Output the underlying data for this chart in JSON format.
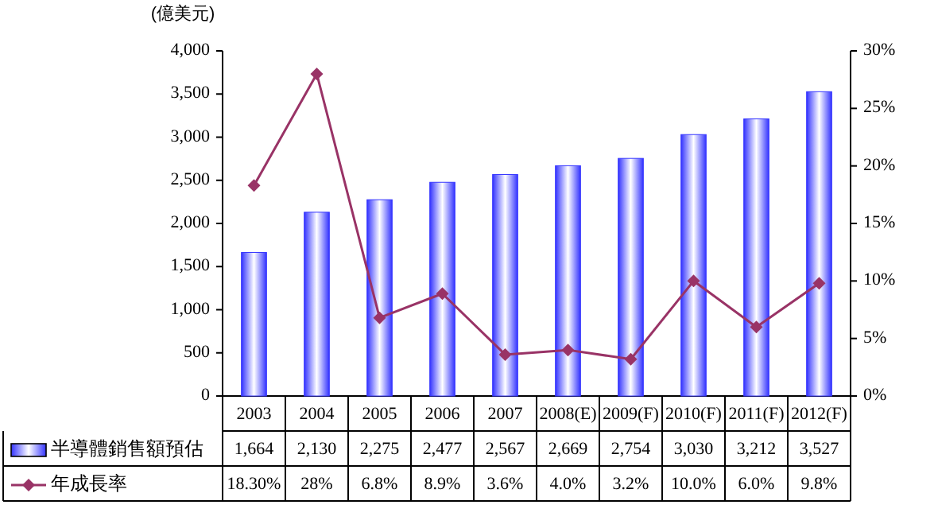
{
  "chart_data": {
    "type": "bar",
    "ylabel": "(億美元)",
    "categories": [
      "2003",
      "2004",
      "2005",
      "2006",
      "2007",
      "2008(E)",
      "2009(F)",
      "2010(F)",
      "2011(F)",
      "2012(F)"
    ],
    "series": [
      {
        "name": "半導體銷售額預估",
        "color": "#3333ff",
        "values": [
          1664,
          2130,
          2275,
          2477,
          2567,
          2669,
          2754,
          3030,
          3212,
          3527
        ],
        "value_labels": [
          "1,664",
          "2,130",
          "2,275",
          "2,477",
          "2,567",
          "2,669",
          "2,754",
          "3,030",
          "3,212",
          "3,527"
        ]
      },
      {
        "name": "年成長率",
        "type": "line",
        "axis": "y2",
        "color": "#993366",
        "marker": "diamond",
        "values": [
          18.3,
          28,
          6.8,
          8.9,
          3.6,
          4.0,
          3.2,
          10.0,
          6.0,
          9.8
        ],
        "value_labels": [
          "18.30%",
          "28%",
          "6.8%",
          "8.9%",
          "3.6%",
          "4.0%",
          "3.2%",
          "10.0%",
          "6.0%",
          "9.8%"
        ]
      }
    ],
    "ylim": [
      0,
      4000
    ],
    "yticks": [
      {
        "value": 0,
        "label": "0"
      },
      {
        "value": 500,
        "label": "500"
      },
      {
        "value": 1000,
        "label": "1,000"
      },
      {
        "value": 1500,
        "label": "1,500"
      },
      {
        "value": 2000,
        "label": "2,000"
      },
      {
        "value": 2500,
        "label": "2,500"
      },
      {
        "value": 3000,
        "label": "3,000"
      },
      {
        "value": 3500,
        "label": "3,500"
      },
      {
        "value": 4000,
        "label": "4,000"
      }
    ],
    "y2lim": [
      0,
      30
    ],
    "y2ticks": [
      {
        "value": 0,
        "label": "0%"
      },
      {
        "value": 5,
        "label": "5%"
      },
      {
        "value": 10,
        "label": "10%"
      },
      {
        "value": 15,
        "label": "15%"
      },
      {
        "value": 20,
        "label": "20%"
      },
      {
        "value": 25,
        "label": "25%"
      },
      {
        "value": 30,
        "label": "30%"
      }
    ],
    "grid": false,
    "legend": "bottom"
  }
}
